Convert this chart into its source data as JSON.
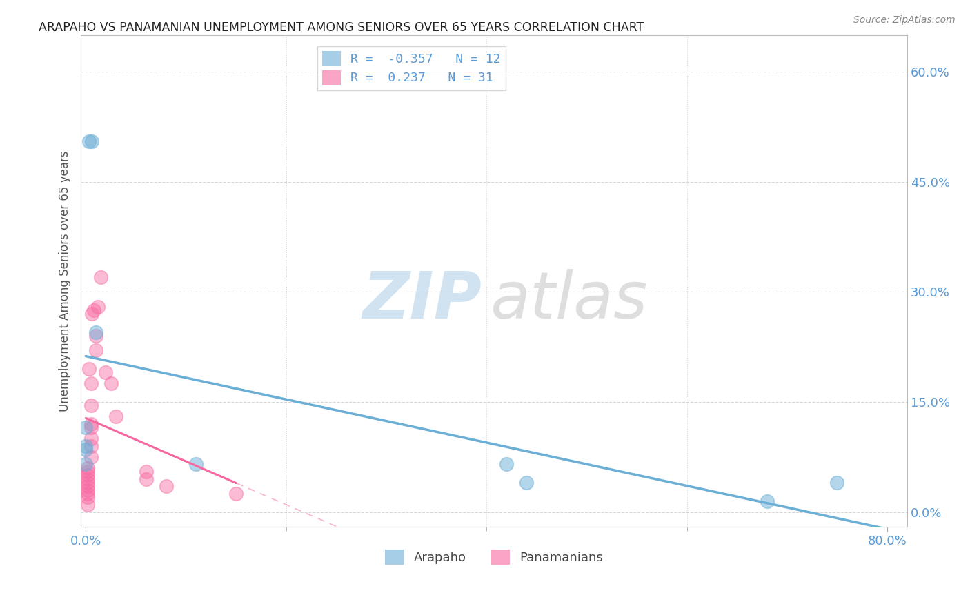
{
  "title": "ARAPAHO VS PANAMANIAN UNEMPLOYMENT AMONG SENIORS OVER 65 YEARS CORRELATION CHART",
  "source": "Source: ZipAtlas.com",
  "ylabel": "Unemployment Among Seniors over 65 years",
  "xlim": [
    -0.005,
    0.82
  ],
  "ylim": [
    -0.02,
    0.65
  ],
  "xtick_vals": [
    0.0,
    0.8
  ],
  "xtick_labels": [
    "0.0%",
    "80.0%"
  ],
  "yticks_right": [
    0.0,
    0.15,
    0.3,
    0.45,
    0.6
  ],
  "ytick_labels_right": [
    "0.0%",
    "15.0%",
    "30.0%",
    "45.0%",
    "60.0%"
  ],
  "arapaho_color": "#6baed6",
  "panamanian_color": "#f768a1",
  "arapaho_R": -0.357,
  "arapaho_N": 12,
  "panamanian_R": 0.237,
  "panamanian_N": 31,
  "arapaho_x": [
    0.003,
    0.006,
    0.01,
    0.0,
    0.0,
    0.0,
    0.0,
    0.11,
    0.42,
    0.44,
    0.68,
    0.75
  ],
  "arapaho_y": [
    0.505,
    0.505,
    0.245,
    0.115,
    0.09,
    0.085,
    0.065,
    0.065,
    0.065,
    0.04,
    0.015,
    0.04
  ],
  "panamanian_x": [
    0.002,
    0.002,
    0.002,
    0.002,
    0.002,
    0.002,
    0.002,
    0.002,
    0.002,
    0.002,
    0.003,
    0.005,
    0.005,
    0.005,
    0.005,
    0.005,
    0.005,
    0.005,
    0.006,
    0.008,
    0.01,
    0.01,
    0.012,
    0.015,
    0.02,
    0.025,
    0.03,
    0.06,
    0.06,
    0.08,
    0.15
  ],
  "panamanian_y": [
    0.06,
    0.055,
    0.05,
    0.045,
    0.04,
    0.035,
    0.03,
    0.025,
    0.02,
    0.01,
    0.195,
    0.175,
    0.145,
    0.12,
    0.115,
    0.1,
    0.09,
    0.075,
    0.27,
    0.275,
    0.22,
    0.24,
    0.28,
    0.32,
    0.19,
    0.175,
    0.13,
    0.055,
    0.045,
    0.035,
    0.025
  ],
  "grid_color": "#cccccc",
  "background_color": "#ffffff"
}
